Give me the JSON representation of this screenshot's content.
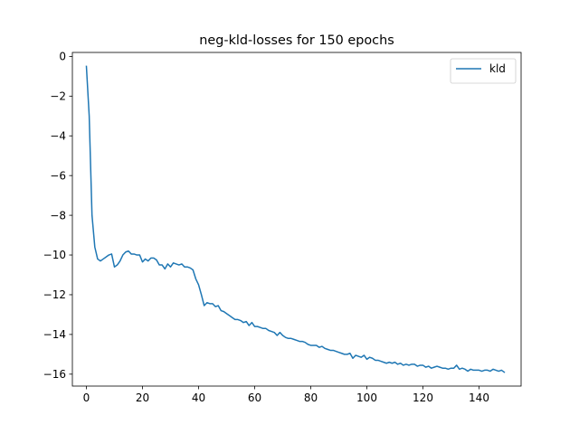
{
  "chart_data": {
    "type": "line",
    "title": "neg-kld-losses for 150 epochs",
    "xlabel": "",
    "ylabel": "",
    "xlim": [
      -5,
      155
    ],
    "ylim": [
      -16.6,
      0.2
    ],
    "x_ticks": [
      0,
      20,
      40,
      60,
      80,
      100,
      120,
      140
    ],
    "y_ticks": [
      0,
      -2,
      -4,
      -6,
      -8,
      -10,
      -12,
      -14,
      -16
    ],
    "x_tick_labels": [
      "0",
      "20",
      "40",
      "60",
      "80",
      "100",
      "120",
      "140"
    ],
    "y_tick_labels": [
      "0",
      "−2",
      "−4",
      "−6",
      "−8",
      "−10",
      "−12",
      "−14",
      "−16"
    ],
    "grid": false,
    "legend_position": "top-right",
    "series": [
      {
        "name": "kld",
        "color": "#1f77b4",
        "x": [
          0,
          1,
          2,
          3,
          4,
          5,
          6,
          7,
          8,
          9,
          10,
          11,
          12,
          13,
          14,
          15,
          16,
          17,
          18,
          19,
          20,
          21,
          22,
          23,
          24,
          25,
          26,
          27,
          28,
          29,
          30,
          31,
          32,
          33,
          34,
          35,
          36,
          37,
          38,
          39,
          40,
          41,
          42,
          43,
          44,
          45,
          46,
          47,
          48,
          49,
          50,
          51,
          52,
          53,
          54,
          55,
          56,
          57,
          58,
          59,
          60,
          61,
          62,
          63,
          64,
          65,
          66,
          67,
          68,
          69,
          70,
          71,
          72,
          73,
          74,
          75,
          76,
          77,
          78,
          79,
          80,
          81,
          82,
          83,
          84,
          85,
          86,
          87,
          88,
          89,
          90,
          91,
          92,
          93,
          94,
          95,
          96,
          97,
          98,
          99,
          100,
          101,
          102,
          103,
          104,
          105,
          106,
          107,
          108,
          109,
          110,
          111,
          112,
          113,
          114,
          115,
          116,
          117,
          118,
          119,
          120,
          121,
          122,
          123,
          124,
          125,
          126,
          127,
          128,
          129,
          130,
          131,
          132,
          133,
          134,
          135,
          136,
          137,
          138,
          139,
          140,
          141,
          142,
          143,
          144,
          145,
          146,
          147,
          148,
          149
        ],
        "values": [
          -0.5,
          -3.0,
          -8.0,
          -9.6,
          -10.2,
          -10.3,
          -10.2,
          -10.1,
          -10.0,
          -9.95,
          -10.6,
          -10.5,
          -10.3,
          -10.0,
          -9.85,
          -9.8,
          -9.95,
          -9.95,
          -10.0,
          -10.0,
          -10.35,
          -10.2,
          -10.3,
          -10.15,
          -10.15,
          -10.25,
          -10.5,
          -10.5,
          -10.7,
          -10.45,
          -10.6,
          -10.4,
          -10.45,
          -10.5,
          -10.45,
          -10.6,
          -10.6,
          -10.65,
          -10.75,
          -11.2,
          -11.5,
          -12.0,
          -12.55,
          -12.4,
          -12.45,
          -12.45,
          -12.6,
          -12.55,
          -12.8,
          -12.85,
          -12.95,
          -13.05,
          -13.15,
          -13.25,
          -13.25,
          -13.3,
          -13.4,
          -13.35,
          -13.55,
          -13.4,
          -13.6,
          -13.6,
          -13.65,
          -13.7,
          -13.7,
          -13.8,
          -13.85,
          -13.9,
          -14.05,
          -13.9,
          -14.05,
          -14.15,
          -14.2,
          -14.2,
          -14.25,
          -14.3,
          -14.35,
          -14.35,
          -14.4,
          -14.5,
          -14.55,
          -14.55,
          -14.55,
          -14.65,
          -14.6,
          -14.7,
          -14.75,
          -14.8,
          -14.8,
          -14.85,
          -14.9,
          -14.95,
          -15.0,
          -15.0,
          -14.95,
          -15.2,
          -15.05,
          -15.1,
          -15.15,
          -15.05,
          -15.25,
          -15.15,
          -15.2,
          -15.3,
          -15.3,
          -15.35,
          -15.4,
          -15.45,
          -15.4,
          -15.45,
          -15.4,
          -15.5,
          -15.45,
          -15.55,
          -15.5,
          -15.55,
          -15.5,
          -15.5,
          -15.6,
          -15.55,
          -15.55,
          -15.65,
          -15.6,
          -15.7,
          -15.65,
          -15.6,
          -15.65,
          -15.7,
          -15.7,
          -15.75,
          -15.7,
          -15.7,
          -15.55,
          -15.75,
          -15.7,
          -15.75,
          -15.85,
          -15.75,
          -15.8,
          -15.8,
          -15.8,
          -15.85,
          -15.8,
          -15.8,
          -15.85,
          -15.75,
          -15.8,
          -15.85,
          -15.8,
          -15.9
        ]
      }
    ]
  }
}
